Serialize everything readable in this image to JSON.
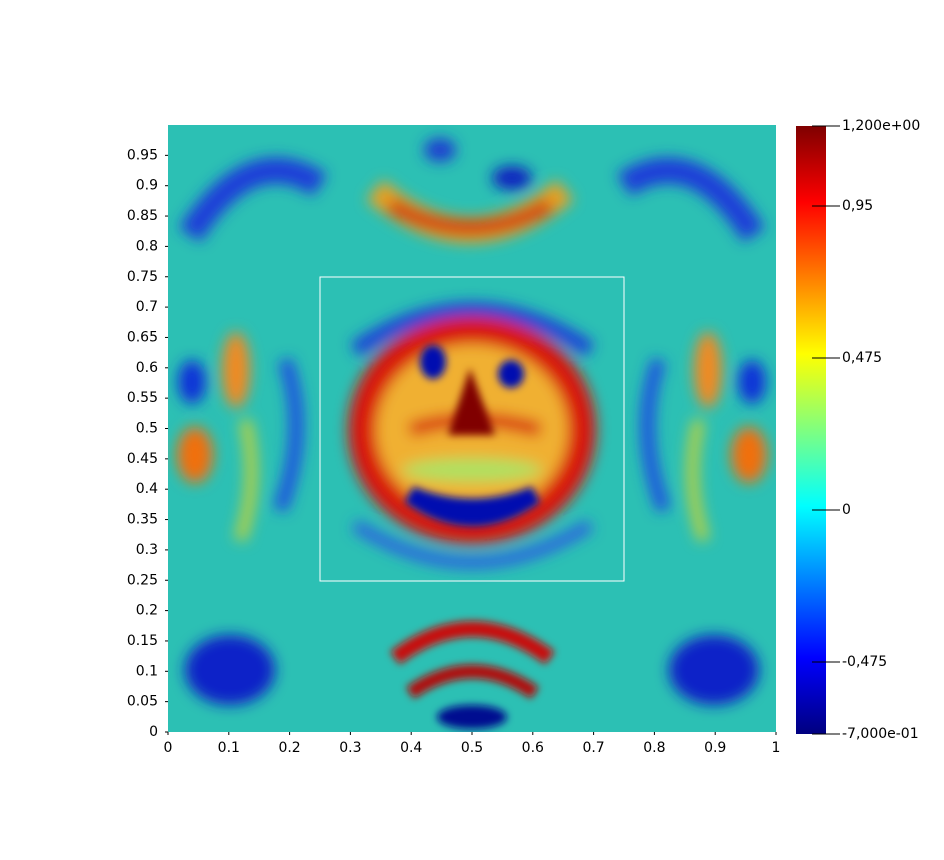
{
  "chart_data": {
    "type": "heatmap",
    "xlim": [
      0,
      1
    ],
    "ylim": [
      0,
      1
    ],
    "xticks": [
      0,
      0.1,
      0.2,
      0.3,
      0.4,
      0.5,
      0.6,
      0.7,
      0.8,
      0.9,
      1
    ],
    "yticks": [
      0,
      0.05,
      0.1,
      0.15,
      0.2,
      0.25,
      0.3,
      0.35,
      0.4,
      0.45,
      0.5,
      0.55,
      0.6,
      0.65,
      0.7,
      0.75,
      0.8,
      0.85,
      0.9,
      0.95
    ],
    "colorbar": {
      "range": [
        -0.7,
        1.2
      ],
      "ticks": [
        {
          "value": 1.2,
          "label": "1,200e+00"
        },
        {
          "value": 0.95,
          "label": "0,95"
        },
        {
          "value": 0.475,
          "label": "0,475"
        },
        0,
        {
          "value": -0.475,
          "label": "-0,475"
        },
        {
          "value": -0.7,
          "label": "-7,000e-01"
        }
      ]
    }
  }
}
